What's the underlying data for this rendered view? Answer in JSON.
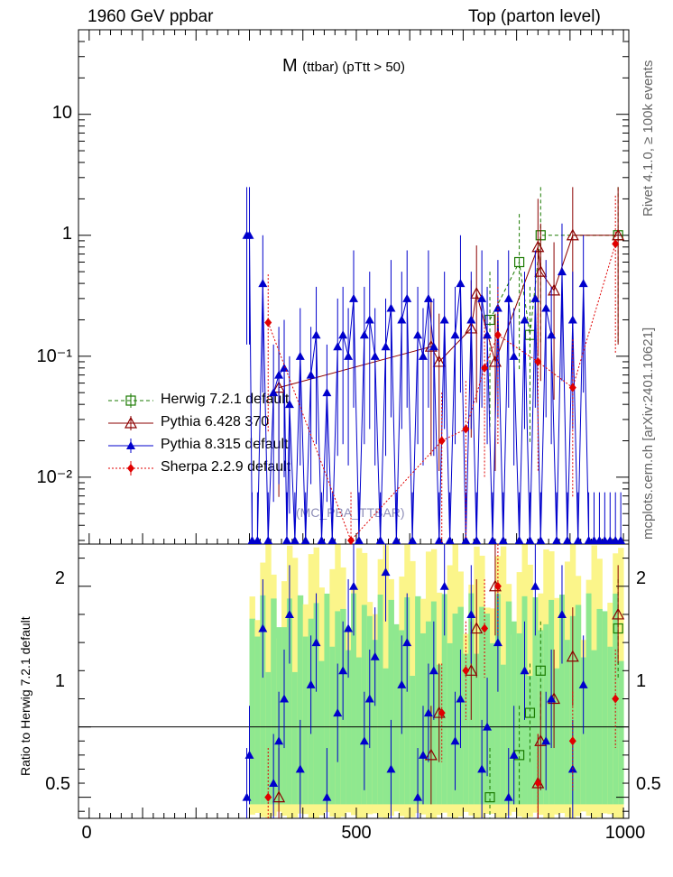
{
  "header": {
    "left": "1960 GeV ppbar",
    "right": "Top (parton level)"
  },
  "side": {
    "rivet": "Rivet 4.1.0, ≥ 100k events",
    "ref": "mcplots.cern.ch [arXiv:2401.10621]"
  },
  "chart_data": {
    "type": "line",
    "title": "M",
    "title_sub": "(ttbar) (pTtt > 50)",
    "watermark": "(MC_PBA_TTBAR)",
    "xlabel": "",
    "xlim": [
      -20,
      1010
    ],
    "x_ticks": [
      "0",
      "500",
      "1000"
    ],
    "main": {
      "yscale": "log",
      "ylim": [
        0.0028,
        50
      ],
      "y_ticks": [
        "10",
        "1",
        "10⁻¹",
        "10⁻²"
      ],
      "y_tick_values": [
        10,
        1,
        0.1,
        0.01
      ]
    },
    "ratio": {
      "ylabel": "Ratio to Herwig 7.2.1 default",
      "ylim": [
        0.35,
        2.3
      ],
      "y_ticks": [
        "2",
        "1",
        "0.5"
      ],
      "y_tick_values": [
        2,
        1,
        0.5
      ]
    },
    "legend": [
      {
        "name": "Herwig 7.2.1 default",
        "color": "#1a7a00",
        "marker": "open-square",
        "line": "dashed"
      },
      {
        "name": "Pythia 6.428 370",
        "color": "#8b0000",
        "marker": "open-triangle",
        "line": "solid"
      },
      {
        "name": "Pythia 8.315 default",
        "color": "#0000cc",
        "marker": "filled-triangle",
        "line": "solid"
      },
      {
        "name": "Sherpa 2.2.9 default",
        "color": "#e00000",
        "marker": "filled-diamond",
        "line": "dotted"
      }
    ],
    "series": [
      {
        "name": "Herwig 7.2.1 default",
        "x": [
          750,
          805,
          825,
          845,
          990
        ],
        "y": [
          0.2,
          0.6,
          0.15,
          1.0,
          1.0
        ]
      },
      {
        "name": "Pythia 6.428 370",
        "x": [
          355,
          640,
          655,
          715,
          725,
          760,
          840,
          845,
          870,
          905,
          990
        ],
        "y": [
          0.055,
          0.12,
          0.09,
          0.17,
          0.33,
          0.09,
          0.8,
          0.5,
          0.35,
          1.0,
          1.0
        ]
      },
      {
        "name": "Pythia 8.315 default",
        "x": [
          295,
          300,
          305,
          315,
          325,
          335,
          345,
          355,
          365,
          370,
          375,
          385,
          395,
          405,
          415,
          425,
          435,
          445,
          455,
          465,
          475,
          485,
          495,
          505,
          515,
          525,
          535,
          545,
          555,
          565,
          575,
          585,
          595,
          605,
          615,
          625,
          635,
          645,
          655,
          665,
          675,
          685,
          695,
          705,
          715,
          725,
          735,
          745,
          755,
          765,
          775,
          785,
          795,
          805,
          815,
          825,
          835,
          845,
          855,
          865,
          875,
          885,
          895,
          905,
          915,
          925,
          935,
          945,
          955,
          965,
          975,
          985,
          995
        ],
        "y": [
          1.0,
          1.0,
          0.003,
          0.003,
          0.4,
          0.003,
          0.05,
          0.07,
          0.08,
          0.003,
          0.04,
          0.003,
          0.1,
          0.003,
          0.07,
          0.15,
          0.003,
          0.05,
          0.003,
          0.12,
          0.15,
          0.1,
          0.3,
          0.003,
          0.15,
          0.2,
          0.1,
          0.003,
          0.12,
          0.25,
          0.003,
          0.2,
          0.3,
          0.003,
          0.15,
          0.1,
          0.3,
          0.12,
          0.003,
          0.2,
          0.003,
          0.15,
          0.4,
          0.003,
          0.2,
          0.003,
          0.3,
          0.15,
          0.003,
          0.25,
          0.003,
          0.3,
          0.1,
          0.003,
          0.2,
          0.003,
          0.3,
          0.003,
          0.25,
          0.15,
          0.003,
          0.5,
          0.003,
          0.2,
          0.003,
          0.4,
          0.003,
          0.003,
          0.003,
          0.003,
          0.003,
          0.003,
          0.003
        ]
      },
      {
        "name": "Sherpa 2.2.9 default",
        "x": [
          335,
          490,
          660,
          705,
          740,
          765,
          840,
          905,
          985
        ],
        "y": [
          0.19,
          0.003,
          0.02,
          0.025,
          0.08,
          0.15,
          0.09,
          0.055,
          0.85
        ]
      }
    ]
  }
}
